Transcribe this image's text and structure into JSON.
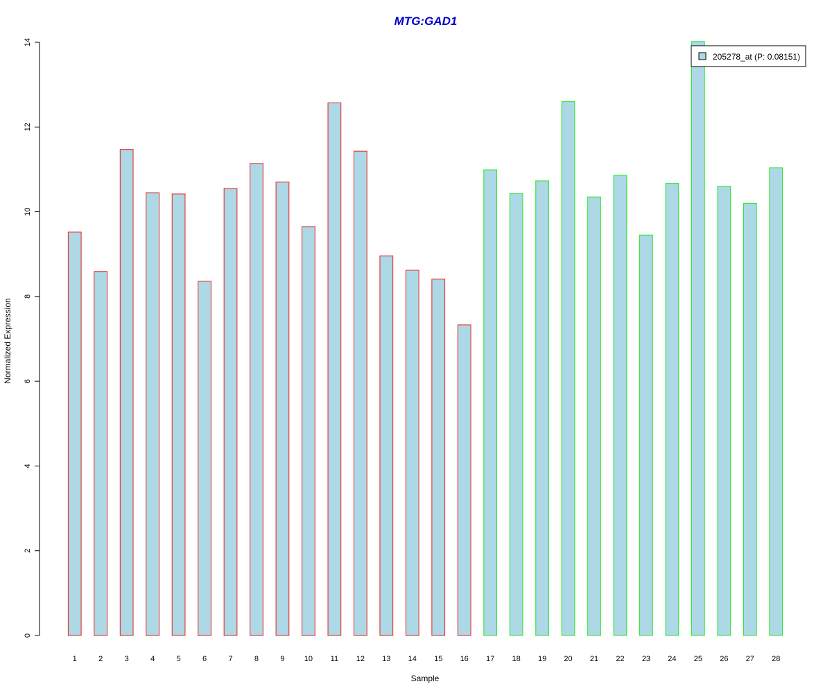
{
  "chart_data": {
    "type": "bar",
    "title": "MTG:GAD1",
    "xlabel": "Sample",
    "ylabel": "Normalized Expression",
    "ylim": [
      0,
      14
    ],
    "yticks": [
      "0",
      "2",
      "4",
      "6",
      "8",
      "10",
      "12",
      "14"
    ],
    "categories": [
      "1",
      "2",
      "3",
      "4",
      "5",
      "6",
      "7",
      "8",
      "9",
      "10",
      "11",
      "12",
      "13",
      "14",
      "15",
      "16",
      "17",
      "18",
      "19",
      "20",
      "21",
      "22",
      "23",
      "24",
      "25",
      "26",
      "27",
      "28"
    ],
    "values": [
      9.52,
      8.59,
      11.47,
      10.45,
      10.42,
      8.36,
      10.55,
      11.14,
      10.7,
      9.65,
      12.57,
      11.43,
      8.96,
      8.62,
      8.41,
      7.33,
      10.99,
      10.43,
      10.73,
      12.6,
      10.35,
      10.86,
      9.45,
      10.67,
      14.02,
      10.6,
      10.2,
      11.04
    ],
    "groups": [
      {
        "count": 16,
        "border_color": "#e8201a"
      },
      {
        "count": 12,
        "border_color": "#22e822"
      }
    ],
    "fill_color": "#add8e6",
    "title_color": "#0000cc",
    "legend": {
      "position": "top-right",
      "entries": [
        {
          "label": "205278_at (P: 0.08151)",
          "color": "#add8e6"
        }
      ]
    },
    "grid": false
  }
}
